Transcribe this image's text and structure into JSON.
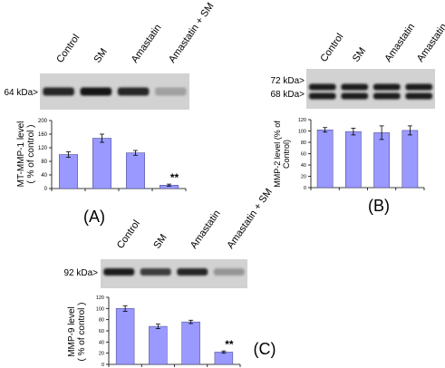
{
  "panel_labels": [
    "(A)",
    "(B)",
    "(C)"
  ],
  "lane_labels": [
    "Control",
    "SM",
    "Amastatin",
    "Amastatin + SM"
  ],
  "colors": {
    "bar_fill": "#9999ff",
    "bar_stroke": "#404080",
    "axis": "#000000",
    "blot_bg": "#d2d2d2",
    "band": "#1a1a1a"
  },
  "chart_data": [
    {
      "type": "bar",
      "panel": "(A)",
      "marker": "64 kDa>",
      "categories": [
        "Control",
        "SM",
        "Amastatin",
        "Amastatin + SM"
      ],
      "values": [
        100,
        148,
        105,
        10
      ],
      "errors": [
        8,
        12,
        7,
        3
      ],
      "ylabel": "MT-MMP-1 level\n( % of control )",
      "ylim": [
        0,
        200
      ],
      "yticks": [
        0,
        40,
        80,
        120,
        160,
        200
      ],
      "annotation": {
        "category_index": 3,
        "text": "**"
      },
      "blot": {
        "markers": [
          "64 kDa>"
        ],
        "band_intensity": [
          0.85,
          0.95,
          0.85,
          0.25
        ]
      }
    },
    {
      "type": "bar",
      "panel": "(B)",
      "marker": "72 kDa>",
      "categories": [
        "Control",
        "SM",
        "Amastatin",
        "Amastatin + SM"
      ],
      "values": [
        102,
        99,
        97,
        101
      ],
      "errors": [
        4,
        6,
        12,
        8
      ],
      "ylabel": "MMP-2 level (% of\nControl)",
      "ylim": [
        0,
        120
      ],
      "yticks": [
        0,
        20,
        40,
        60,
        80,
        100,
        120
      ],
      "blot": {
        "markers": [
          "72 kDa>",
          "68 kDa>"
        ],
        "band_intensity": [
          0.9,
          0.9,
          0.9,
          0.9
        ]
      }
    },
    {
      "type": "bar",
      "panel": "(C)",
      "marker": "92 kDa>",
      "categories": [
        "Control",
        "SM",
        "Amastatin",
        "Amastatin + SM"
      ],
      "values": [
        100,
        68,
        76,
        22
      ],
      "errors": [
        5,
        4,
        3,
        2
      ],
      "ylabel": "MMP-9 level\n( % of control )",
      "ylim": [
        0,
        120
      ],
      "yticks": [
        0,
        20,
        40,
        60,
        80,
        100,
        120
      ],
      "annotation": {
        "category_index": 3,
        "text": "**"
      },
      "blot": {
        "markers": [
          "92 kDa>"
        ],
        "band_intensity": [
          0.9,
          0.75,
          0.85,
          0.3
        ]
      }
    }
  ]
}
